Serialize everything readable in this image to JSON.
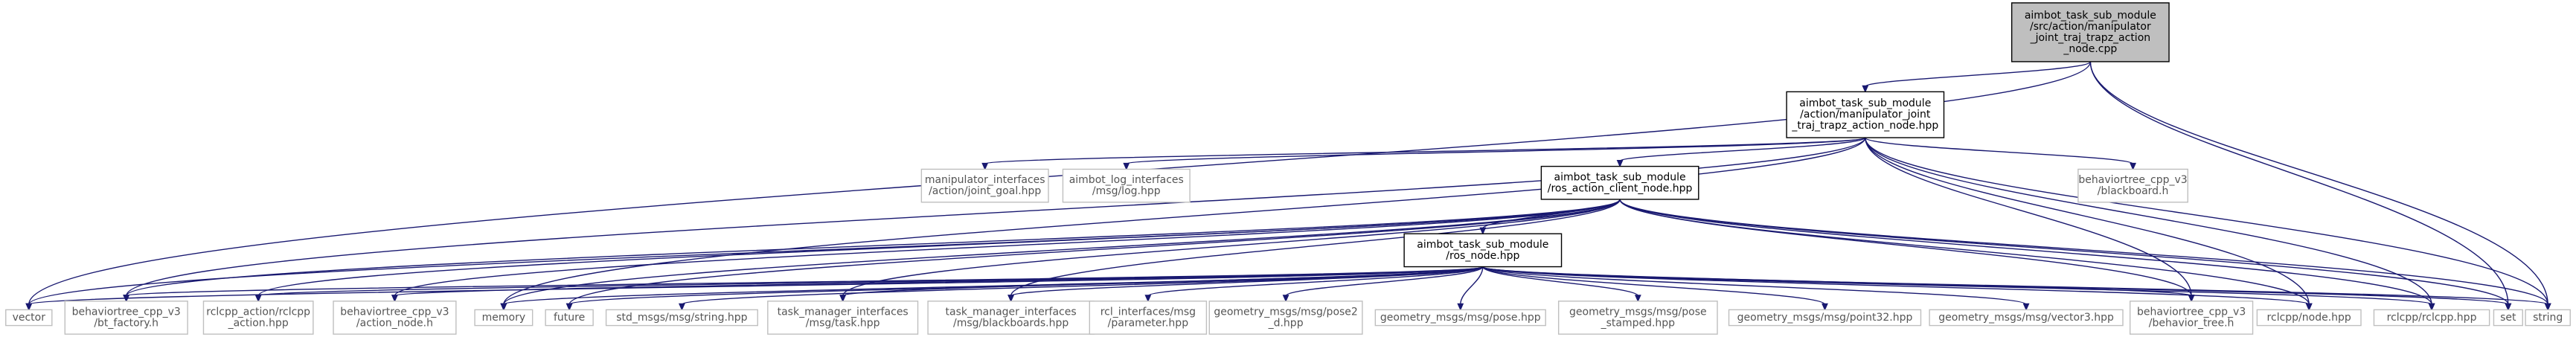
{
  "colors": {
    "edge": "#191970",
    "root_fill": "#bfbfbf",
    "root_border": "#000000",
    "internal_border": "#000000",
    "external_border": "#bfbfbf",
    "text": "#000000",
    "external_text": "#555555"
  },
  "nodes": [
    {
      "id": "root",
      "kind": "root",
      "lines": [
        "aimbot_task_sub_module",
        "/src/action/manipulator",
        "_joint_traj_trapz_action",
        "_node.cpp"
      ]
    },
    {
      "id": "action_node_hpp",
      "kind": "internal",
      "lines": [
        "aimbot_task_sub_module",
        "/action/manipulator_joint",
        "_traj_trapz_action_node.hpp"
      ]
    },
    {
      "id": "ros_action_client",
      "kind": "internal",
      "lines": [
        "aimbot_task_sub_module",
        "/ros_action_client_node.hpp"
      ]
    },
    {
      "id": "ros_node",
      "kind": "internal",
      "lines": [
        "aimbot_task_sub_module",
        "/ros_node.hpp"
      ]
    },
    {
      "id": "manip_joint_goal",
      "kind": "external",
      "lines": [
        "manipulator_interfaces",
        "/action/joint_goal.hpp"
      ]
    },
    {
      "id": "log_hpp",
      "kind": "external",
      "lines": [
        "aimbot_log_interfaces",
        "/msg/log.hpp"
      ]
    },
    {
      "id": "blackboard_h",
      "kind": "external",
      "lines": [
        "behaviortree_cpp_v3",
        "/blackboard.h"
      ]
    },
    {
      "id": "vector",
      "kind": "external",
      "lines": [
        "vector"
      ]
    },
    {
      "id": "bt_factory",
      "kind": "external",
      "lines": [
        "behaviortree_cpp_v3",
        "/bt_factory.h"
      ]
    },
    {
      "id": "rclcpp_action",
      "kind": "external",
      "lines": [
        "rclcpp_action/rclcpp",
        "_action.hpp"
      ]
    },
    {
      "id": "action_node_h",
      "kind": "external",
      "lines": [
        "behaviortree_cpp_v3",
        "/action_node.h"
      ]
    },
    {
      "id": "memory",
      "kind": "external",
      "lines": [
        "memory"
      ]
    },
    {
      "id": "future",
      "kind": "external",
      "lines": [
        "future"
      ]
    },
    {
      "id": "std_string",
      "kind": "external",
      "lines": [
        "std_msgs/msg/string.hpp"
      ]
    },
    {
      "id": "task_hpp",
      "kind": "external",
      "lines": [
        "task_manager_interfaces",
        "/msg/task.hpp"
      ]
    },
    {
      "id": "blackboards_hpp",
      "kind": "external",
      "lines": [
        "task_manager_interfaces",
        "/msg/blackboards.hpp"
      ]
    },
    {
      "id": "parameter_hpp",
      "kind": "external",
      "lines": [
        "rcl_interfaces/msg",
        "/parameter.hpp"
      ]
    },
    {
      "id": "pose2d",
      "kind": "external",
      "lines": [
        "geometry_msgs/msg/pose2",
        "_d.hpp"
      ]
    },
    {
      "id": "pose",
      "kind": "external",
      "lines": [
        "geometry_msgs/msg/pose.hpp"
      ]
    },
    {
      "id": "pose_stamped",
      "kind": "external",
      "lines": [
        "geometry_msgs/msg/pose",
        "_stamped.hpp"
      ]
    },
    {
      "id": "point32",
      "kind": "external",
      "lines": [
        "geometry_msgs/msg/point32.hpp"
      ]
    },
    {
      "id": "vector3",
      "kind": "external",
      "lines": [
        "geometry_msgs/msg/vector3.hpp"
      ]
    },
    {
      "id": "behavior_tree",
      "kind": "external",
      "lines": [
        "behaviortree_cpp_v3",
        "/behavior_tree.h"
      ]
    },
    {
      "id": "rclcpp_node",
      "kind": "external",
      "lines": [
        "rclcpp/node.hpp"
      ]
    },
    {
      "id": "rclcpp_hpp",
      "kind": "external",
      "lines": [
        "rclcpp/rclcpp.hpp"
      ]
    },
    {
      "id": "set",
      "kind": "external",
      "lines": [
        "set"
      ]
    },
    {
      "id": "string",
      "kind": "external",
      "lines": [
        "string"
      ]
    }
  ],
  "edges": [
    [
      "root",
      "action_node_hpp"
    ],
    [
      "root",
      "vector"
    ],
    [
      "root",
      "set"
    ],
    [
      "root",
      "string"
    ],
    [
      "action_node_hpp",
      "manip_joint_goal"
    ],
    [
      "action_node_hpp",
      "log_hpp"
    ],
    [
      "action_node_hpp",
      "ros_action_client"
    ],
    [
      "action_node_hpp",
      "blackboard_h"
    ],
    [
      "action_node_hpp",
      "bt_factory"
    ],
    [
      "action_node_hpp",
      "memory"
    ],
    [
      "action_node_hpp",
      "behavior_tree"
    ],
    [
      "action_node_hpp",
      "rclcpp_node"
    ],
    [
      "action_node_hpp",
      "rclcpp_hpp"
    ],
    [
      "action_node_hpp",
      "string"
    ],
    [
      "ros_action_client",
      "ros_node"
    ],
    [
      "ros_action_client",
      "vector"
    ],
    [
      "ros_action_client",
      "bt_factory"
    ],
    [
      "ros_action_client",
      "rclcpp_action"
    ],
    [
      "ros_action_client",
      "action_node_h"
    ],
    [
      "ros_action_client",
      "memory"
    ],
    [
      "ros_action_client",
      "future"
    ],
    [
      "ros_action_client",
      "task_hpp"
    ],
    [
      "ros_action_client",
      "blackboards_hpp"
    ],
    [
      "ros_action_client",
      "behavior_tree"
    ],
    [
      "ros_action_client",
      "rclcpp_node"
    ],
    [
      "ros_action_client",
      "rclcpp_hpp"
    ],
    [
      "ros_action_client",
      "set"
    ],
    [
      "ros_action_client",
      "string"
    ],
    [
      "ros_node",
      "vector"
    ],
    [
      "ros_node",
      "bt_factory"
    ],
    [
      "ros_node",
      "rclcpp_action"
    ],
    [
      "ros_node",
      "action_node_h"
    ],
    [
      "ros_node",
      "memory"
    ],
    [
      "ros_node",
      "future"
    ],
    [
      "ros_node",
      "std_string"
    ],
    [
      "ros_node",
      "task_hpp"
    ],
    [
      "ros_node",
      "blackboards_hpp"
    ],
    [
      "ros_node",
      "parameter_hpp"
    ],
    [
      "ros_node",
      "pose2d"
    ],
    [
      "ros_node",
      "pose"
    ],
    [
      "ros_node",
      "pose_stamped"
    ],
    [
      "ros_node",
      "point32"
    ],
    [
      "ros_node",
      "vector3"
    ],
    [
      "ros_node",
      "behavior_tree"
    ],
    [
      "ros_node",
      "rclcpp_node"
    ],
    [
      "ros_node",
      "rclcpp_hpp"
    ],
    [
      "ros_node",
      "set"
    ],
    [
      "ros_node",
      "string"
    ]
  ]
}
